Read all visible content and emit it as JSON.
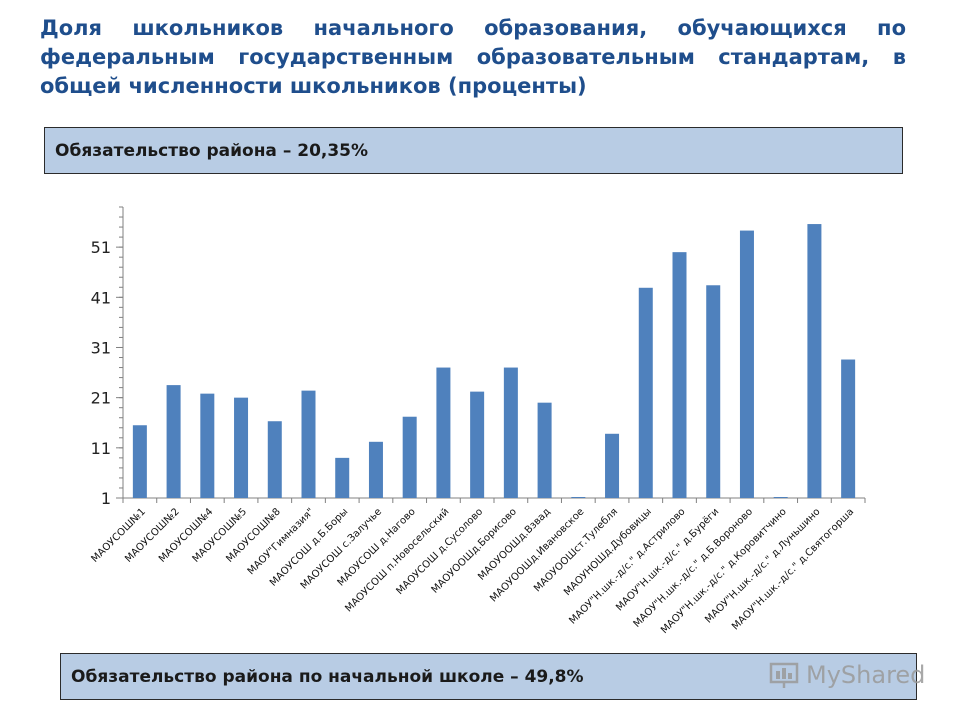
{
  "page": {
    "title": "Доля школьников начального образования, обучающихся по федеральным государственным образовательным стандартам, в общей численности школьников (проценты)",
    "obligation_district": "Обязательство района – 20,35%",
    "obligation_primary": "Обязательство района по начальной школе  – 49,8%",
    "watermark_text": "MyShared"
  },
  "chart_data": {
    "type": "bar",
    "categories": [
      "МАОУСОШ№1",
      "МАОУСОШ№2",
      "МАОУСОШ№4",
      "МАОУСОШ№5",
      "МАОУСОШ№8",
      "МАОУ\"Гимназия\"",
      "МАОУСОШ д.Б.Боры",
      "МАОУСОШ с.Залучье",
      "МАОУСОШ д.Нагово",
      "МАОУСОШ п.Новосельский",
      "МАОУСОШ д.Сусолово",
      "МАОУООШд.Борисово",
      "МАОУООШд.Взвад",
      "МАОУООШд.Ивановское",
      "МАОУООШст.Тулебля",
      "МАОУНОШд.Дубовицы",
      "МАОУ\"Н.шк.-д/с.\" д.Астрилово",
      "МАОУ\"Н.шк.-д/с.\" д.Бурёги",
      "МАОУ\"Н.шк.-д/с.\" д.Б.Вороново",
      "МАОУ\"Н.шк.-д/с.\" д.Коровитчино",
      "МАОУ\"Н.шк.-д/с.\" д.Луньшино",
      "МАОУ\"Н.шк.-д/с.\" д.Святогорша"
    ],
    "values": [
      15.5,
      23.5,
      21.8,
      21,
      16.3,
      22.4,
      9,
      12.2,
      17.2,
      27,
      22.2,
      27,
      20,
      1,
      13.8,
      42.9,
      50,
      43.4,
      54.3,
      1,
      55.6,
      28.6
    ],
    "ylim": [
      1,
      59
    ],
    "yticks": [
      1,
      11,
      21,
      31,
      41,
      51
    ],
    "bar_color": "#4f81bd",
    "grid": false
  }
}
